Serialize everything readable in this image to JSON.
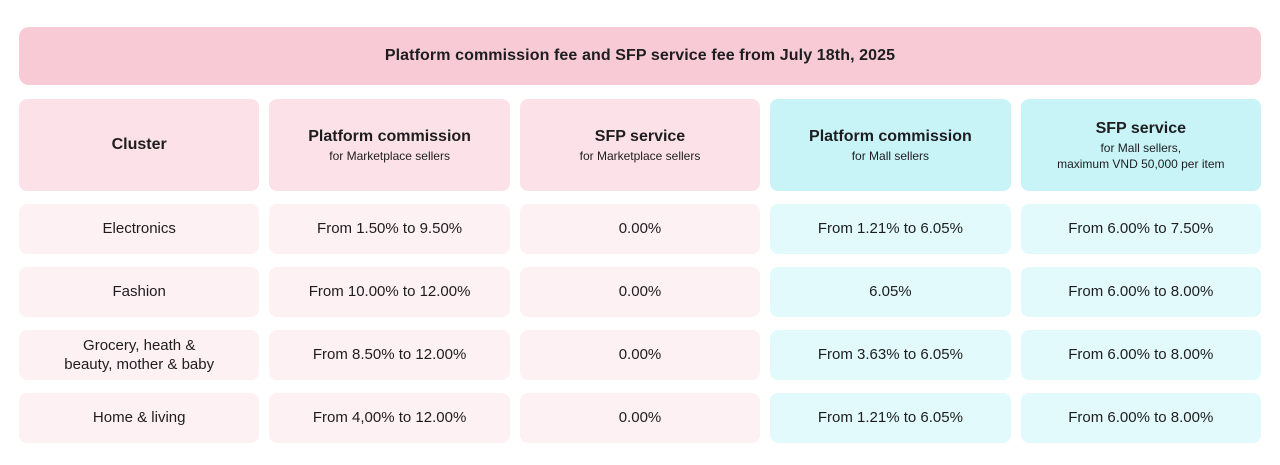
{
  "banner": {
    "title": "Platform commission fee and SFP service fee from July 18th, 2025"
  },
  "table": {
    "columns": [
      {
        "title": "Cluster",
        "subtitle": "",
        "theme": "pink"
      },
      {
        "title": "Platform commission",
        "subtitle": "for Marketplace sellers",
        "theme": "pink"
      },
      {
        "title": "SFP service",
        "subtitle": "for Marketplace sellers",
        "theme": "pink"
      },
      {
        "title": "Platform commission",
        "subtitle": "for Mall sellers",
        "theme": "cyan"
      },
      {
        "title": "SFP service",
        "subtitle": "for Mall sellers,\nmaximum VND 50,000 per item",
        "theme": "cyan"
      }
    ],
    "rows": [
      {
        "cells": [
          "Electronics",
          "From 1.50% to 9.50%",
          "0.00%",
          "From 1.21% to 6.05%",
          "From 6.00% to 7.50%"
        ]
      },
      {
        "cells": [
          "Fashion",
          "From 10.00% to 12.00%",
          "0.00%",
          "6.05%",
          "From 6.00% to 8.00%"
        ]
      },
      {
        "cells": [
          "Grocery, heath &\nbeauty, mother & baby",
          "From 8.50% to 12.00%",
          "0.00%",
          "From 3.63% to 6.05%",
          "From 6.00% to 8.00%"
        ]
      },
      {
        "cells": [
          "Home & living",
          "From 4,00% to 12.00%",
          "0.00%",
          "From 1.21% to 6.05%",
          "From 6.00% to 8.00%"
        ]
      }
    ]
  },
  "colors": {
    "banner_pink": "#f7cad6",
    "header_pink": "#fce2e8",
    "header_cyan": "#c8f4f8",
    "row_pink": "#fdf1f3",
    "row_cyan": "#e2fafc",
    "text": "#1d1d1f",
    "background": "#ffffff"
  }
}
